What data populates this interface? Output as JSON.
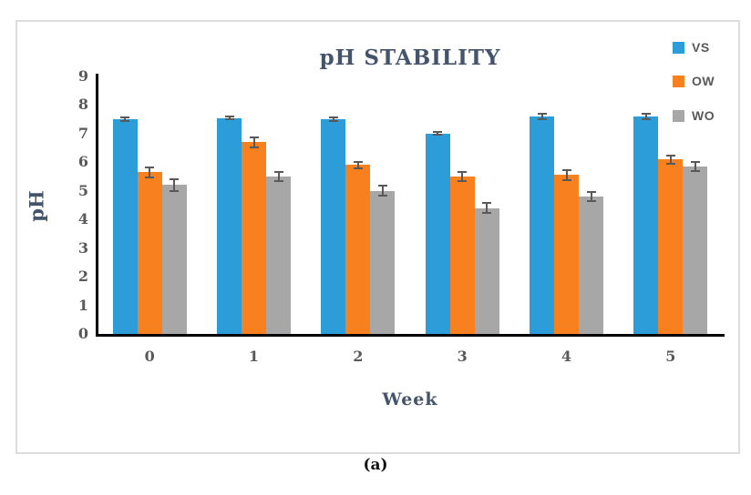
{
  "caption": "(a)",
  "colors": {
    "axis_line": "#000000",
    "tick_text": "#595959",
    "title_text": "#44546A",
    "frame_border": "#DCDCDC",
    "error_bar": "#595959"
  },
  "chart_data": {
    "type": "bar",
    "title": "pH STABILITY",
    "xlabel": "Week",
    "ylabel": "pH",
    "categories": [
      "0",
      "1",
      "2",
      "3",
      "4",
      "5"
    ],
    "series": [
      {
        "name": "VS",
        "color": "#2D9DD9",
        "values": [
          7.5,
          7.55,
          7.5,
          7.0,
          7.6,
          7.6
        ],
        "errors": [
          0.1,
          0.08,
          0.1,
          0.08,
          0.12,
          0.12
        ]
      },
      {
        "name": "OW",
        "color": "#F8801E",
        "values": [
          5.65,
          6.7,
          5.9,
          5.5,
          5.55,
          6.1
        ],
        "errors": [
          0.2,
          0.2,
          0.15,
          0.18,
          0.2,
          0.18
        ]
      },
      {
        "name": "WO",
        "color": "#A7A7A7",
        "values": [
          5.2,
          5.5,
          5.0,
          4.4,
          4.8,
          5.85
        ],
        "errors": [
          0.25,
          0.2,
          0.2,
          0.2,
          0.2,
          0.2
        ]
      }
    ],
    "ylim": [
      0,
      9
    ],
    "yticks": [
      0,
      1,
      2,
      3,
      4,
      5,
      6,
      7,
      8,
      9
    ],
    "grid": false,
    "legend_position": "top-right",
    "error_bars": true
  }
}
